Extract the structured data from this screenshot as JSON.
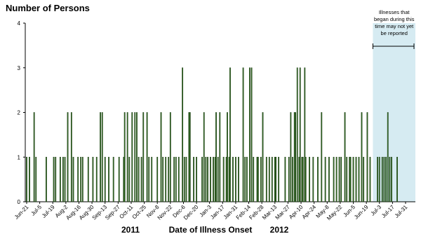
{
  "chart_data": {
    "type": "bar",
    "title": "Number of Persons",
    "x_label": "Date of Illness Onset",
    "year_labels": [
      "2011",
      "2012"
    ],
    "color": "#3b7a2a",
    "x": [
      "Jun-21",
      "Jun-24",
      "Jun-29",
      "Jul-1",
      "Jul-12",
      "Jul-20",
      "Jul-22",
      "Jul-27",
      "Jul-30",
      "Aug-1",
      "Aug-4",
      "Aug-8",
      "Aug-10",
      "Aug-15",
      "Aug-18",
      "Aug-20",
      "Aug-26",
      "Aug-31",
      "Sep-4",
      "Sep-8",
      "Sep-10",
      "Sep-13",
      "Sep-17",
      "Sep-22",
      "Sep-28",
      "Oct-3",
      "Oct-4",
      "Oct-7",
      "Oct-9",
      "Oct-12",
      "Oct-15",
      "Oct-17",
      "Oct-19",
      "Oct-22",
      "Oct-24",
      "Oct-28",
      "Oct-30",
      "Nov-2",
      "Nov-8",
      "Nov-12",
      "Nov-14",
      "Nov-17",
      "Nov-20",
      "Nov-22",
      "Nov-26",
      "Nov-28",
      "Dec-1",
      "Dec-5",
      "Dec-7",
      "Dec-9",
      "Dec-12",
      "Dec-13",
      "Dec-17",
      "Dec-20",
      "Dec-26",
      "Dec-28",
      "Dec-30",
      "Jan-1",
      "Jan-4",
      "Jan-7",
      "Jan-9",
      "Jan-10",
      "Jan-12",
      "Jan-14",
      "Jan-18",
      "Jan-21",
      "Jan-22",
      "Jan-24",
      "Jan-25",
      "Jan-28",
      "Jan-31",
      "Feb-3",
      "Feb-8",
      "Feb-10",
      "Feb-12",
      "Feb-15",
      "Feb-17",
      "Feb-19",
      "Feb-23",
      "Feb-24",
      "Feb-27",
      "Feb-29",
      "Mar-4",
      "Mar-7",
      "Mar-10",
      "Mar-13",
      "Mar-14",
      "Mar-17",
      "Mar-24",
      "Mar-28",
      "Mar-30",
      "Apr-1",
      "Apr-3",
      "Apr-4",
      "Apr-6",
      "Apr-8",
      "Apr-9",
      "Apr-11",
      "Apr-12",
      "Apr-14",
      "Apr-15",
      "Apr-19",
      "Apr-23",
      "Apr-28",
      "May-2",
      "May-6",
      "May-10",
      "May-15",
      "May-18",
      "May-21",
      "May-23",
      "May-27",
      "May-29",
      "Jun-1",
      "Jun-2",
      "Jun-5",
      "Jun-8",
      "Jun-11",
      "Jun-14",
      "Jun-16",
      "Jun-20",
      "Jun-23",
      "Jul-1",
      "Jul-3",
      "Jul-6",
      "Jul-8",
      "Jul-10",
      "Jul-12",
      "Jul-14",
      "Jul-16",
      "Jul-22"
    ],
    "values": [
      1,
      1,
      2,
      1,
      1,
      1,
      1,
      1,
      1,
      1,
      2,
      2,
      1,
      1,
      1,
      1,
      1,
      1,
      1,
      2,
      2,
      1,
      1,
      1,
      1,
      1,
      2,
      2,
      1,
      2,
      2,
      2,
      1,
      1,
      2,
      2,
      1,
      1,
      1,
      2,
      1,
      1,
      1,
      2,
      1,
      1,
      1,
      3,
      1,
      1,
      2,
      2,
      1,
      1,
      1,
      2,
      1,
      1,
      1,
      1,
      1,
      2,
      1,
      2,
      1,
      1,
      2,
      1,
      3,
      1,
      1,
      1,
      3,
      1,
      1,
      3,
      3,
      1,
      1,
      1,
      1,
      2,
      1,
      1,
      1,
      1,
      1,
      1,
      1,
      1,
      2,
      1,
      2,
      2,
      3,
      1,
      3,
      1,
      1,
      3,
      1,
      1,
      1,
      1,
      2,
      1,
      1,
      1,
      1,
      1,
      1,
      2,
      1,
      1,
      1,
      1,
      1,
      1,
      2,
      1,
      2,
      1,
      1,
      1,
      1,
      1,
      1,
      2,
      1,
      1,
      1
    ],
    "xticks": [
      "Jun-21",
      "Jul-5",
      "Jul-19",
      "Aug-2",
      "Aug-16",
      "Aug-30",
      "Sep-13",
      "Sep-27",
      "Oct-11",
      "Oct-25",
      "Nov-8",
      "Nov-22",
      "Dec-6",
      "Dec-20",
      "Jan-3",
      "Jan-17",
      "Jan-31",
      "Feb-14",
      "Feb-28",
      "Mar-13",
      "Mar-27",
      "Apr-10",
      "Apr-24",
      "May-8",
      "May-22",
      "Jun-5",
      "Jun-19",
      "Jul-3",
      "Jul-17",
      "Jul-31"
    ],
    "ylim": [
      0,
      4
    ],
    "yticks": [
      0,
      1,
      2,
      3,
      4
    ],
    "annotation": {
      "lines": [
        "Illnesses that",
        "began during this",
        "time may not yet",
        "be reported"
      ],
      "from": "Jun-26",
      "to": "Jul-31",
      "color": "#d6ebf2"
    }
  }
}
